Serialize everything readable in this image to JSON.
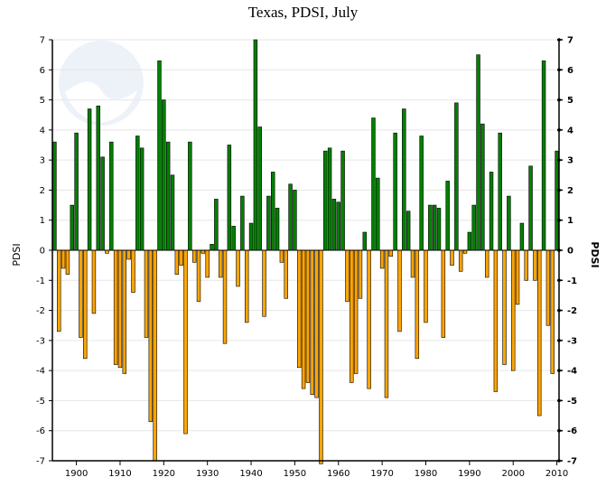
{
  "chart_data": {
    "type": "bar",
    "title": "Texas, PDSI, July",
    "ylabel_left": "PDSI",
    "ylabel_right": "PDSI",
    "xlabel": "",
    "ylim": [
      -7,
      7
    ],
    "xlim": [
      1895,
      2010
    ],
    "y_ticks_left": [
      "-7",
      "-6",
      "-5",
      "-4",
      "-3",
      "-2",
      "-1",
      "0",
      "1",
      "2",
      "3",
      "4",
      "5",
      "6",
      "7"
    ],
    "y_ticks_right": [
      "-7",
      "-6",
      "-5",
      "-4",
      "-3",
      "-2",
      "-1",
      "0",
      "1",
      "2",
      "3",
      "4",
      "5",
      "6",
      "7"
    ],
    "x_ticks": [
      "1900",
      "1910",
      "1920",
      "1930",
      "1940",
      "1950",
      "1960",
      "1970",
      "1980",
      "1990",
      "2000",
      "2010"
    ],
    "x_tick_values": [
      1900,
      1910,
      1920,
      1930,
      1940,
      1950,
      1960,
      1970,
      1980,
      1990,
      2000,
      2010
    ],
    "positive_color": "#008000",
    "negative_color": "#FFA500",
    "grid": true,
    "watermark": "NOAA",
    "years": [
      1895,
      1896,
      1897,
      1898,
      1899,
      1900,
      1901,
      1902,
      1903,
      1904,
      1905,
      1906,
      1907,
      1908,
      1909,
      1910,
      1911,
      1912,
      1913,
      1914,
      1915,
      1916,
      1917,
      1918,
      1919,
      1920,
      1921,
      1922,
      1923,
      1924,
      1925,
      1926,
      1927,
      1928,
      1929,
      1930,
      1931,
      1932,
      1933,
      1934,
      1935,
      1936,
      1937,
      1938,
      1939,
      1940,
      1941,
      1942,
      1943,
      1944,
      1945,
      1946,
      1947,
      1948,
      1949,
      1950,
      1951,
      1952,
      1953,
      1954,
      1955,
      1956,
      1957,
      1958,
      1959,
      1960,
      1961,
      1962,
      1963,
      1964,
      1965,
      1966,
      1967,
      1968,
      1969,
      1970,
      1971,
      1972,
      1973,
      1974,
      1975,
      1976,
      1977,
      1978,
      1979,
      1980,
      1981,
      1982,
      1983,
      1984,
      1985,
      1986,
      1987,
      1988,
      1989,
      1990,
      1991,
      1992,
      1993,
      1994,
      1995,
      1996,
      1997,
      1998,
      1999,
      2000,
      2001,
      2002,
      2003,
      2004,
      2005,
      2006,
      2007,
      2008,
      2009,
      2010
    ],
    "values": [
      3.6,
      -2.7,
      -0.6,
      -0.8,
      1.5,
      3.9,
      -2.9,
      -3.6,
      4.7,
      -2.1,
      4.8,
      3.1,
      -0.1,
      3.6,
      -3.8,
      -3.9,
      -4.1,
      -0.3,
      -1.4,
      3.8,
      3.4,
      -2.9,
      -5.7,
      -7.0,
      6.3,
      5.0,
      3.6,
      2.5,
      -0.8,
      -0.5,
      -6.1,
      3.6,
      -0.4,
      -1.7,
      -0.1,
      -0.9,
      0.2,
      1.7,
      -0.9,
      -3.1,
      3.5,
      0.8,
      -1.2,
      1.8,
      -2.4,
      0.9,
      7.0,
      4.1,
      -2.2,
      1.8,
      2.6,
      1.4,
      -0.4,
      -1.6,
      2.2,
      2.0,
      -3.9,
      -4.6,
      -4.4,
      -4.8,
      -4.9,
      -7.1,
      3.3,
      3.4,
      1.7,
      1.6,
      3.3,
      -1.7,
      -4.4,
      -4.1,
      -1.6,
      0.6,
      -4.6,
      4.4,
      2.4,
      -0.6,
      -4.9,
      -0.2,
      3.9,
      -2.7,
      4.7,
      1.3,
      -0.9,
      -3.6,
      3.8,
      -2.4,
      1.5,
      1.5,
      1.4,
      -2.9,
      2.3,
      -0.5,
      4.9,
      -0.7,
      -0.1,
      0.6,
      1.5,
      6.5,
      4.2,
      -0.9,
      2.6,
      -4.7,
      3.9,
      -3.8,
      1.8,
      -4.0,
      -1.8,
      0.9,
      -1.0,
      2.8,
      -1.0,
      -5.5,
      6.3,
      -2.5,
      -4.1,
      3.3
    ]
  }
}
